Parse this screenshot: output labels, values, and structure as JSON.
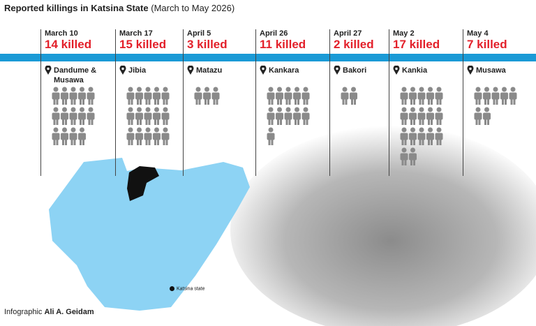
{
  "header": {
    "title": "Reported killings in Katsina State",
    "subtitle": "(March to May 2026)"
  },
  "events": [
    {
      "date": "March 10",
      "count": 14,
      "count_label": "14 killed",
      "location": "Dandume & Musawa"
    },
    {
      "date": "March 17",
      "count": 15,
      "count_label": "15 killed",
      "location": "Jibia"
    },
    {
      "date": "April 5",
      "count": 3,
      "count_label": "3 killed",
      "location": "Matazu"
    },
    {
      "date": "April 26",
      "count": 11,
      "count_label": "11 killed",
      "location": "Kankara"
    },
    {
      "date": "April 27",
      "count": 2,
      "count_label": "2 killed",
      "location": "Bakori"
    },
    {
      "date": "May 2",
      "count": 17,
      "count_label": "17 killed",
      "location": "Kankia"
    },
    {
      "date": "May 4",
      "count": 7,
      "count_label": "7 killed",
      "location": "Musawa"
    }
  ],
  "map": {
    "legend": "Katsina state"
  },
  "footer": {
    "prefix": "Infographic",
    "author": "Ali A. Geidam"
  }
}
